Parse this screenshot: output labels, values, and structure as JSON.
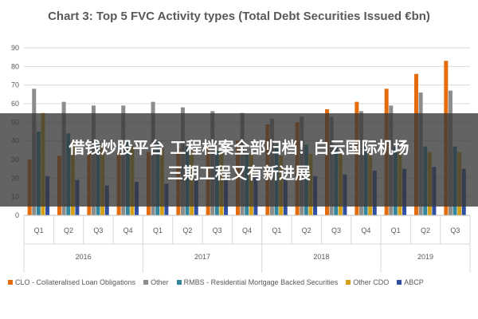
{
  "chart_data": {
    "type": "bar",
    "title": "Chart 3: Top 5 FVC Activity types (Total Debt Securities Issued €bn)",
    "xlabel": "",
    "ylabel": "",
    "ylim": [
      0,
      90
    ],
    "yticks": [
      "0",
      "10",
      "20",
      "30",
      "40",
      "50",
      "60",
      "70",
      "80",
      "90"
    ],
    "grid": true,
    "legend_position": "bottom",
    "categories": [
      "Q1",
      "Q2",
      "Q3",
      "Q4",
      "Q1",
      "Q2",
      "Q3",
      "Q4",
      "Q1",
      "Q2",
      "Q3",
      "Q4",
      "Q1",
      "Q2",
      "Q3"
    ],
    "groups": [
      {
        "label": "2016",
        "span": 4
      },
      {
        "label": "2017",
        "span": 4
      },
      {
        "label": "2018",
        "span": 4
      },
      {
        "label": "2019",
        "span": 3
      }
    ],
    "series": [
      {
        "name": "CLO - Collateralised Loan Obligations",
        "color": "#e46c0a",
        "values": [
          30,
          32,
          33,
          34,
          34,
          36,
          38,
          40,
          49,
          50,
          57,
          61,
          68,
          76,
          83
        ]
      },
      {
        "name": "Other",
        "color": "#8c8c8c",
        "values": [
          68,
          61,
          59,
          59,
          61,
          58,
          56,
          55,
          52,
          53,
          53,
          56,
          59,
          66,
          67
        ]
      },
      {
        "name": "RMBS - Residential Mortgage Backed Securities",
        "color": "#31859c",
        "values": [
          45,
          44,
          40,
          40,
          39,
          37,
          35,
          34,
          38,
          38,
          38,
          38,
          37,
          37,
          37
        ]
      },
      {
        "name": "Other CDO",
        "color": "#d4a017",
        "values": [
          55,
          40,
          38,
          37,
          36,
          35,
          34,
          33,
          32,
          33,
          33,
          34,
          34,
          34,
          34
        ]
      },
      {
        "name": "ABCP",
        "color": "#2f4fa2",
        "values": [
          21,
          19,
          16,
          18,
          17,
          20,
          21,
          21,
          20,
          21,
          22,
          24,
          25,
          26,
          25
        ]
      }
    ]
  },
  "overlay": {
    "line1": "借钱炒股平台 工程档案全部归档！白云国际机场",
    "line2": "三期工程又有新进展"
  }
}
